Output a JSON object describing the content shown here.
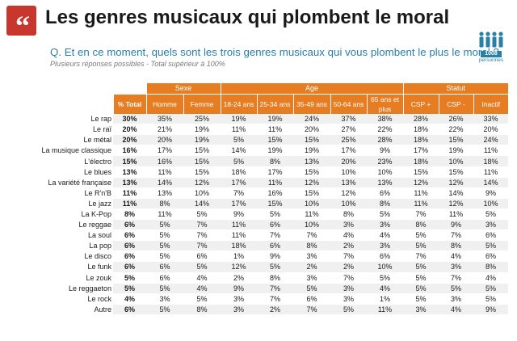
{
  "header": {
    "title": "Les genres musicaux qui plombent le moral",
    "question": "Q. Et en ce moment, quels sont les trois genres musicaux qui vous plombent le plus le moral ?",
    "note": "Plusieurs réponses possibles - Total supérieur à 100%",
    "sample_count": "1008",
    "sample_label": "personnes"
  },
  "colors": {
    "accent_orange": "#e77d22",
    "question_blue": "#2a7fa6",
    "quote_red": "#c8372d"
  },
  "table": {
    "group_headers": [
      "Sexe",
      "Age",
      "Statut"
    ],
    "columns": [
      "% Total",
      "Homme",
      "Femme",
      "18-24 ans",
      "25-34 ans",
      "35-49 ans",
      "50-64 ans",
      "65 ans et plus",
      "CSP +",
      "CSP -",
      "Inactif"
    ],
    "rows": [
      {
        "label": "Le rap",
        "values": [
          "30%",
          "35%",
          "25%",
          "19%",
          "19%",
          "24%",
          "37%",
          "38%",
          "28%",
          "26%",
          "33%"
        ]
      },
      {
        "label": "Le raï",
        "values": [
          "20%",
          "21%",
          "19%",
          "11%",
          "11%",
          "20%",
          "27%",
          "22%",
          "18%",
          "22%",
          "20%"
        ]
      },
      {
        "label": "Le métal",
        "values": [
          "20%",
          "20%",
          "19%",
          "5%",
          "15%",
          "15%",
          "25%",
          "28%",
          "18%",
          "15%",
          "24%"
        ]
      },
      {
        "label": "La musique classique",
        "values": [
          "16%",
          "17%",
          "15%",
          "14%",
          "19%",
          "19%",
          "17%",
          "9%",
          "17%",
          "19%",
          "11%"
        ]
      },
      {
        "label": "L'électro",
        "values": [
          "15%",
          "16%",
          "15%",
          "5%",
          "8%",
          "13%",
          "20%",
          "23%",
          "18%",
          "10%",
          "18%"
        ]
      },
      {
        "label": "Le blues",
        "values": [
          "13%",
          "11%",
          "15%",
          "18%",
          "17%",
          "15%",
          "10%",
          "10%",
          "15%",
          "15%",
          "11%"
        ]
      },
      {
        "label": "La variété française",
        "values": [
          "13%",
          "14%",
          "12%",
          "17%",
          "11%",
          "12%",
          "13%",
          "13%",
          "12%",
          "12%",
          "14%"
        ]
      },
      {
        "label": "Le R'n'B",
        "values": [
          "11%",
          "13%",
          "10%",
          "7%",
          "16%",
          "15%",
          "12%",
          "6%",
          "11%",
          "14%",
          "9%"
        ]
      },
      {
        "label": "Le jazz",
        "values": [
          "11%",
          "8%",
          "14%",
          "17%",
          "15%",
          "10%",
          "10%",
          "8%",
          "11%",
          "12%",
          "10%"
        ]
      },
      {
        "label": "La K-Pop",
        "values": [
          "8%",
          "11%",
          "5%",
          "9%",
          "5%",
          "11%",
          "8%",
          "5%",
          "7%",
          "11%",
          "5%"
        ]
      },
      {
        "label": "Le reggae",
        "values": [
          "6%",
          "5%",
          "7%",
          "11%",
          "6%",
          "10%",
          "3%",
          "3%",
          "8%",
          "9%",
          "3%"
        ]
      },
      {
        "label": "La soul",
        "values": [
          "6%",
          "5%",
          "7%",
          "11%",
          "7%",
          "7%",
          "4%",
          "4%",
          "5%",
          "7%",
          "6%"
        ]
      },
      {
        "label": "La pop",
        "values": [
          "6%",
          "5%",
          "7%",
          "18%",
          "6%",
          "8%",
          "2%",
          "3%",
          "5%",
          "8%",
          "5%"
        ]
      },
      {
        "label": "Le disco",
        "values": [
          "6%",
          "5%",
          "6%",
          "1%",
          "9%",
          "3%",
          "7%",
          "6%",
          "7%",
          "4%",
          "6%"
        ]
      },
      {
        "label": "Le funk",
        "values": [
          "6%",
          "6%",
          "5%",
          "12%",
          "5%",
          "2%",
          "2%",
          "10%",
          "5%",
          "3%",
          "8%"
        ]
      },
      {
        "label": "Le zouk",
        "values": [
          "5%",
          "6%",
          "4%",
          "2%",
          "8%",
          "3%",
          "7%",
          "5%",
          "5%",
          "7%",
          "4%"
        ]
      },
      {
        "label": "Le reggaeton",
        "values": [
          "5%",
          "5%",
          "4%",
          "9%",
          "7%",
          "5%",
          "3%",
          "4%",
          "5%",
          "5%",
          "5%"
        ]
      },
      {
        "label": "Le rock",
        "values": [
          "4%",
          "3%",
          "5%",
          "3%",
          "7%",
          "6%",
          "3%",
          "1%",
          "5%",
          "3%",
          "5%"
        ]
      },
      {
        "label": "Autre",
        "values": [
          "6%",
          "5%",
          "8%",
          "3%",
          "2%",
          "7%",
          "5%",
          "11%",
          "3%",
          "4%",
          "9%"
        ]
      }
    ]
  }
}
